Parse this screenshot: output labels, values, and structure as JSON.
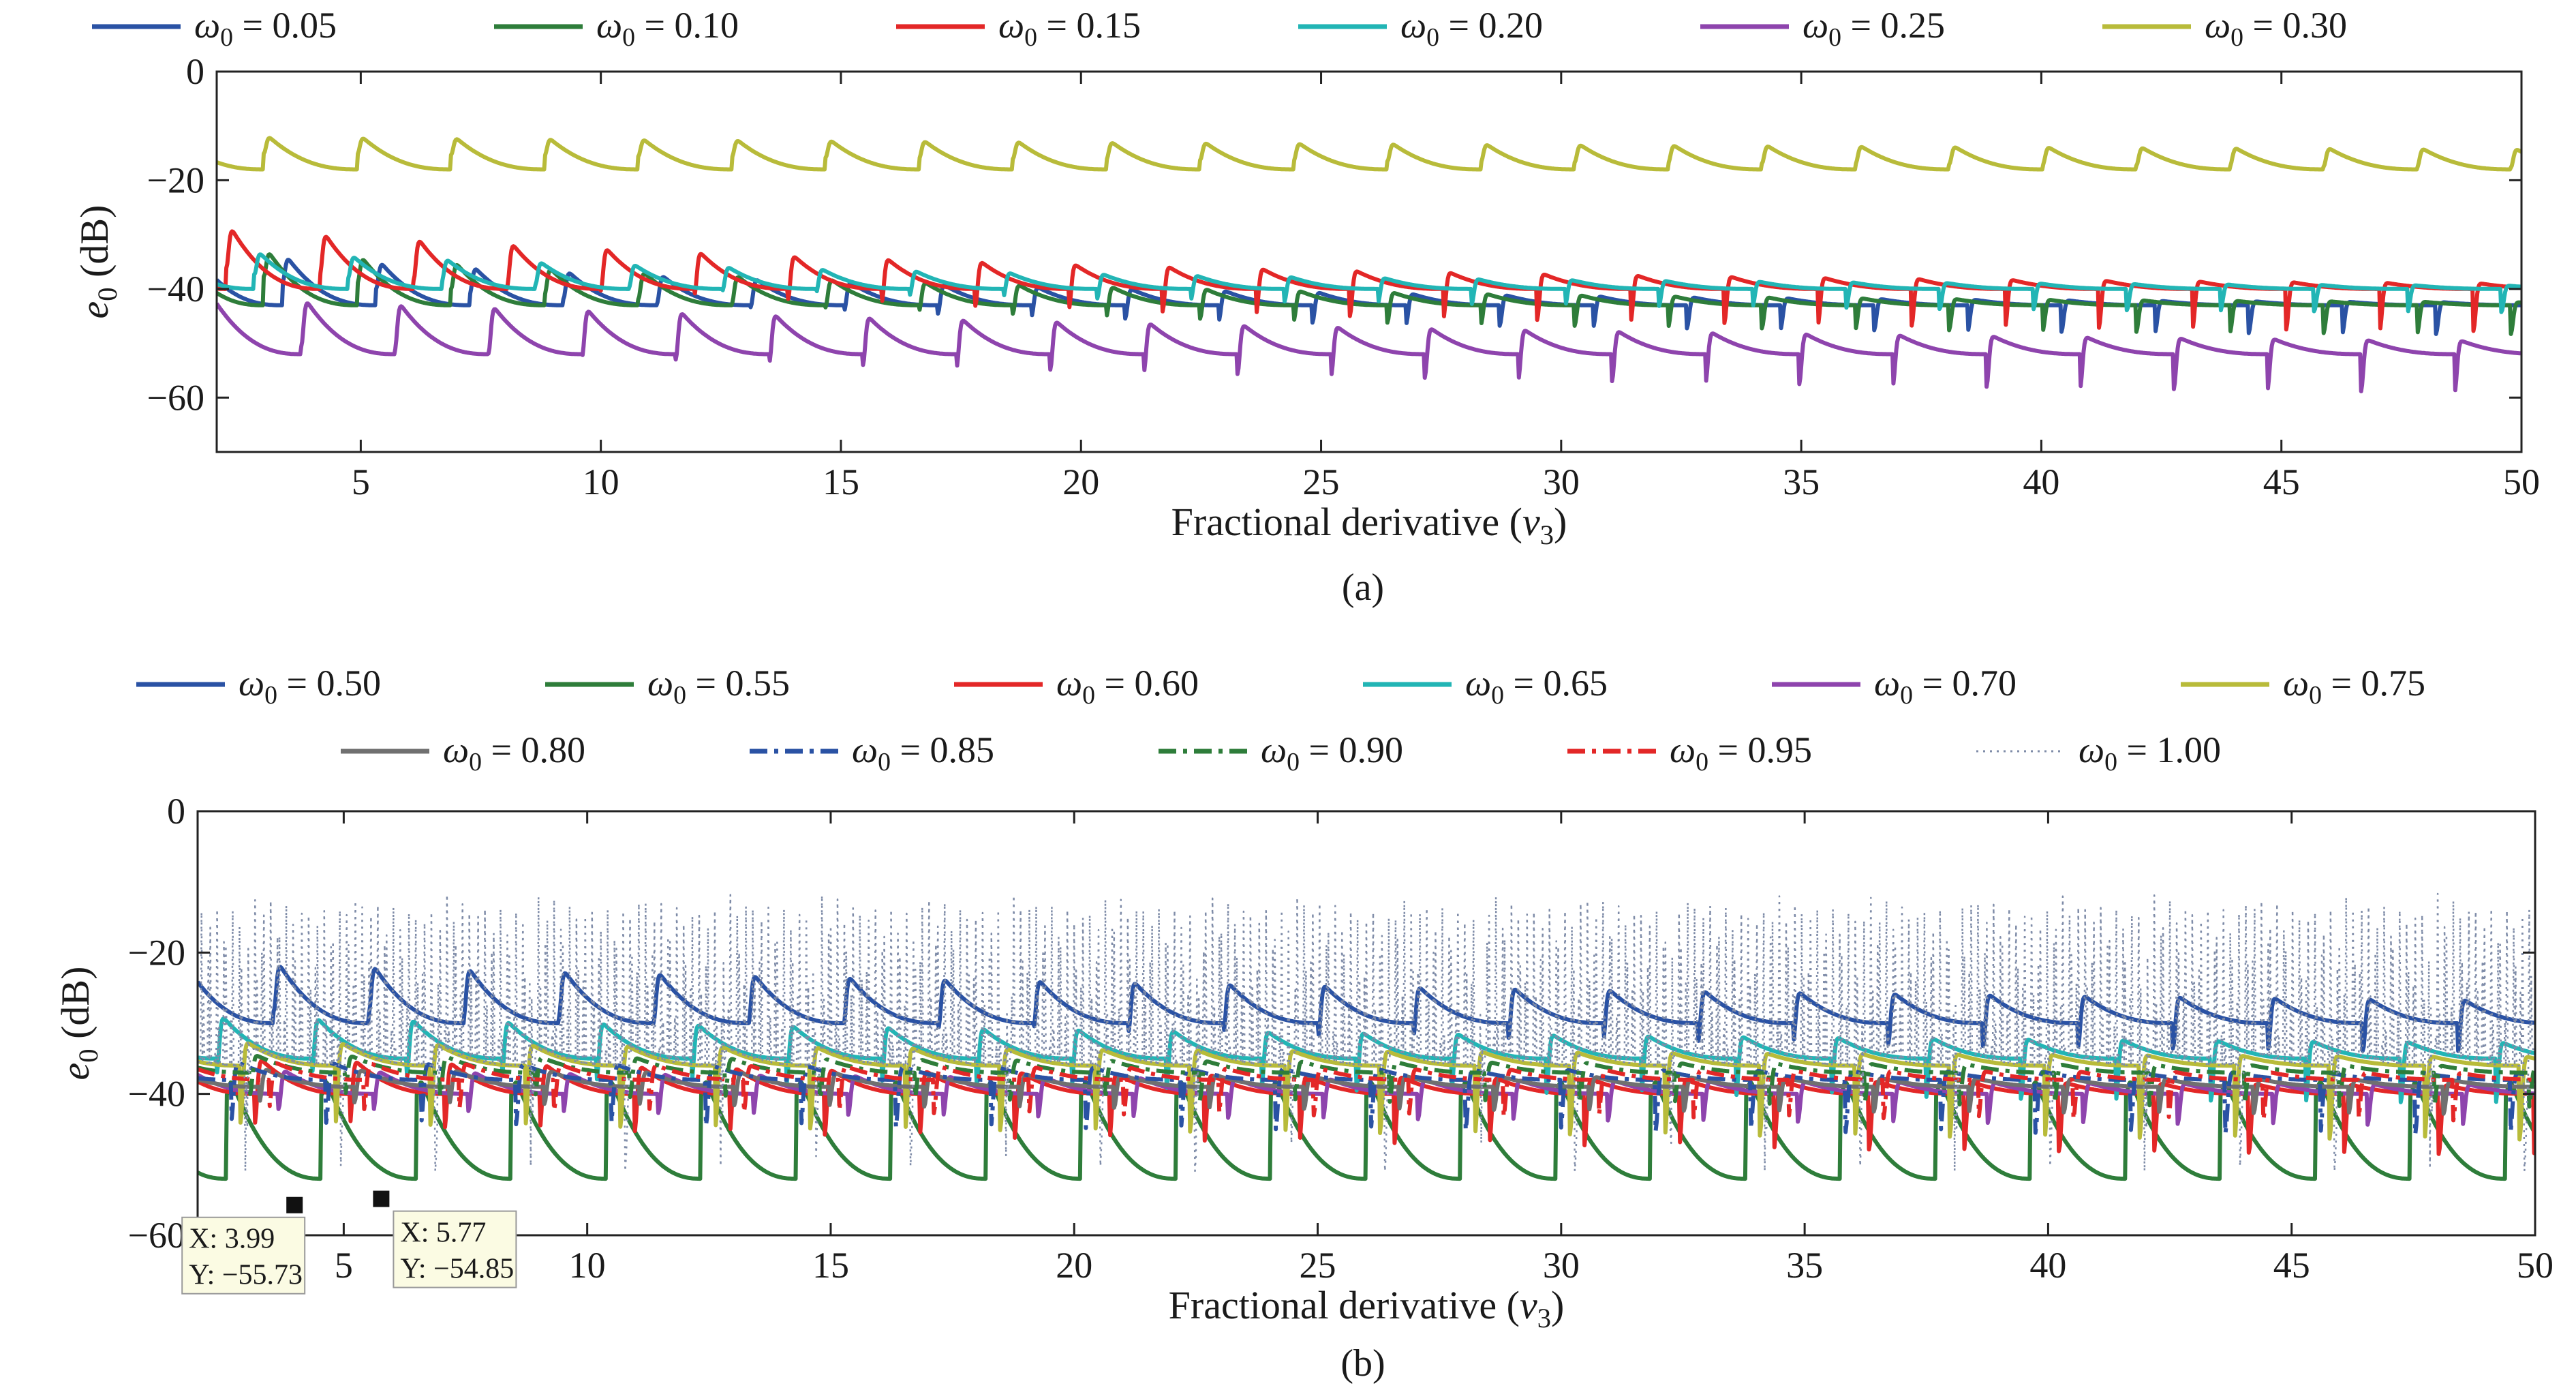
{
  "figure": {
    "panels": [
      "(a)",
      "(b)"
    ]
  },
  "chart_data": [
    {
      "type": "line",
      "panel": "(a)",
      "xlabel": "Fractional derivative (v3)",
      "ylabel": "e0 (dB)",
      "xlim": [
        2,
        50
      ],
      "ylim": [
        -70,
        0
      ],
      "xticks": [
        5,
        10,
        15,
        20,
        25,
        30,
        35,
        40,
        45,
        50
      ],
      "yticks": [
        0,
        -20,
        -40,
        -60
      ],
      "grid": false,
      "legend_position": "top-center",
      "series": [
        {
          "name": "ω0 = 0.05",
          "color": "#2a52a4",
          "style": "solid",
          "base": -43,
          "amp": 11,
          "phase": 0.3,
          "decay": 0.06,
          "depth": 6
        },
        {
          "name": "ω0 = 0.10",
          "color": "#2e7d3a",
          "style": "solid",
          "base": -43,
          "amp": 12,
          "phase": 0.5,
          "decay": 0.06,
          "depth": 6
        },
        {
          "name": "ω0 = 0.15",
          "color": "#e32727",
          "style": "solid",
          "base": -40,
          "amp": 13,
          "phase": 0.9,
          "decay": 0.05,
          "depth": 9
        },
        {
          "name": "ω0 = 0.20",
          "color": "#22b5b5",
          "style": "solid",
          "base": -40,
          "amp": 8,
          "phase": 0.6,
          "decay": 0.05,
          "depth": 5
        },
        {
          "name": "ω0 = 0.25",
          "color": "#8e44ad",
          "style": "solid",
          "base": -52,
          "amp": 12,
          "phase": 0.1,
          "decay": 0.03,
          "depth": 10
        },
        {
          "name": "ω0 = 0.30",
          "color": "#b8bb3a",
          "style": "solid",
          "base": -18,
          "amp": 7,
          "phase": 0.5,
          "decay": 0.01,
          "depth": 4
        }
      ]
    },
    {
      "type": "line",
      "panel": "(b)",
      "xlabel": "Fractional derivative (v3)",
      "ylabel": "e0 (dB)",
      "xlim": [
        2,
        50
      ],
      "ylim": [
        -60,
        0
      ],
      "xticks": [
        5,
        10,
        15,
        20,
        25,
        30,
        35,
        40,
        45,
        50
      ],
      "yticks": [
        0,
        -20,
        -40,
        -60
      ],
      "grid": false,
      "legend_position": "top-center",
      "series": [
        {
          "name": "ω0 = 0.50",
          "color": "#2a52a4",
          "style": "solid",
          "base": -30,
          "amp": 10,
          "phase": 0.2,
          "decay": 0.02,
          "depth": 8
        },
        {
          "name": "ω0 = 0.55",
          "color": "#2e7d3a",
          "style": "solid",
          "base": -52,
          "amp": 16,
          "phase": 0.7,
          "decay": 0.0,
          "depth": 4
        },
        {
          "name": "ω0 = 0.60",
          "color": "#e32727",
          "style": "solid",
          "base": -40,
          "amp": 6,
          "phase": 0.4,
          "decay": 0.03,
          "depth": 10
        },
        {
          "name": "ω0 = 0.65",
          "color": "#22b5b5",
          "style": "solid",
          "base": -35,
          "amp": 7,
          "phase": 0.8,
          "decay": 0.02,
          "depth": 9
        },
        {
          "name": "ω0 = 0.70",
          "color": "#8e44ad",
          "style": "solid",
          "base": -40,
          "amp": 4,
          "phase": 0.15,
          "decay": 0.02,
          "depth": 6
        },
        {
          "name": "ω0 = 0.75",
          "color": "#b8bb3a",
          "style": "solid",
          "base": -36,
          "amp": 4,
          "phase": 0.55,
          "decay": 0.02,
          "depth": 12
        },
        {
          "name": "ω0 = 0.80",
          "color": "#707070",
          "style": "solid",
          "base": -39,
          "amp": 3,
          "phase": 0.35,
          "decay": 0.02,
          "depth": 5
        },
        {
          "name": "ω0 = 0.85",
          "color": "#2a52a4",
          "style": "dashdot",
          "base": -38,
          "amp": 3,
          "phase": 0.65,
          "decay": 0.02,
          "depth": 9
        },
        {
          "name": "ω0 = 0.90",
          "color": "#2e7d3a",
          "style": "dashdot",
          "base": -37,
          "amp": 3,
          "phase": 0.45,
          "decay": 0.02,
          "depth": 6
        },
        {
          "name": "ω0 = 0.95",
          "color": "#e32727",
          "style": "dashdot",
          "base": -38,
          "amp": 3,
          "phase": 0.25,
          "decay": 0.02,
          "depth": 7
        },
        {
          "name": "ω0 = 1.00",
          "color": "#7f8ca8",
          "style": "dotted",
          "base": -36,
          "amp": 3,
          "phase": 0.5,
          "decay": 0.0,
          "depth": 18
        }
      ],
      "annotations": [
        {
          "x": 3.99,
          "y": -55.73,
          "x_label": "X: 3.99",
          "y_label": "Y: −55.73"
        },
        {
          "x": 5.77,
          "y": -54.85,
          "x_label": "X: 5.77",
          "y_label": "Y: −54.85"
        }
      ]
    }
  ]
}
